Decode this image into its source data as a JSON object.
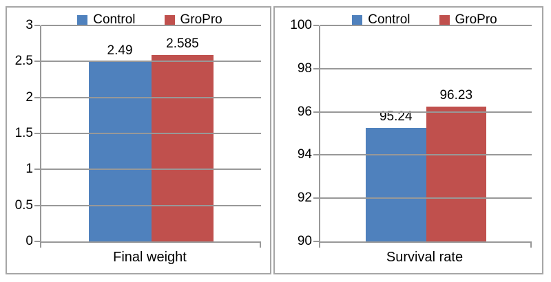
{
  "colors": {
    "control": "#4F81BD",
    "gropro": "#C0504D",
    "axis": "#989898",
    "gridline": "#989898",
    "chart_border": "#A6A6A6",
    "text": "#000000",
    "background": "#FFFFFF"
  },
  "chart_data": [
    {
      "type": "bar",
      "category": "Final weight",
      "series": [
        {
          "name": "Control",
          "value": 2.49,
          "label": "2.49",
          "color": "#4F81BD"
        },
        {
          "name": "GroPro",
          "value": 2.585,
          "label": "2.585",
          "color": "#C0504D"
        }
      ],
      "ylim": [
        0,
        3
      ],
      "yticks": [
        {
          "value": 0,
          "label": "0"
        },
        {
          "value": 0.5,
          "label": "0.5"
        },
        {
          "value": 1,
          "label": "1"
        },
        {
          "value": 1.5,
          "label": "1.5"
        },
        {
          "value": 2,
          "label": "2"
        },
        {
          "value": 2.5,
          "label": "2.5"
        },
        {
          "value": 3,
          "label": "3"
        }
      ],
      "grid": true,
      "legend_position": "top"
    },
    {
      "type": "bar",
      "category": "Survival rate",
      "series": [
        {
          "name": "Control",
          "value": 95.24,
          "label": "95.24",
          "color": "#4F81BD"
        },
        {
          "name": "GroPro",
          "value": 96.23,
          "label": "96.23",
          "color": "#C0504D"
        }
      ],
      "ylim": [
        90,
        100
      ],
      "yticks": [
        {
          "value": 90,
          "label": "90"
        },
        {
          "value": 92,
          "label": "92"
        },
        {
          "value": 94,
          "label": "94"
        },
        {
          "value": 96,
          "label": "96"
        },
        {
          "value": 98,
          "label": "98"
        },
        {
          "value": 100,
          "label": "100"
        }
      ],
      "grid": true,
      "legend_position": "top"
    }
  ]
}
